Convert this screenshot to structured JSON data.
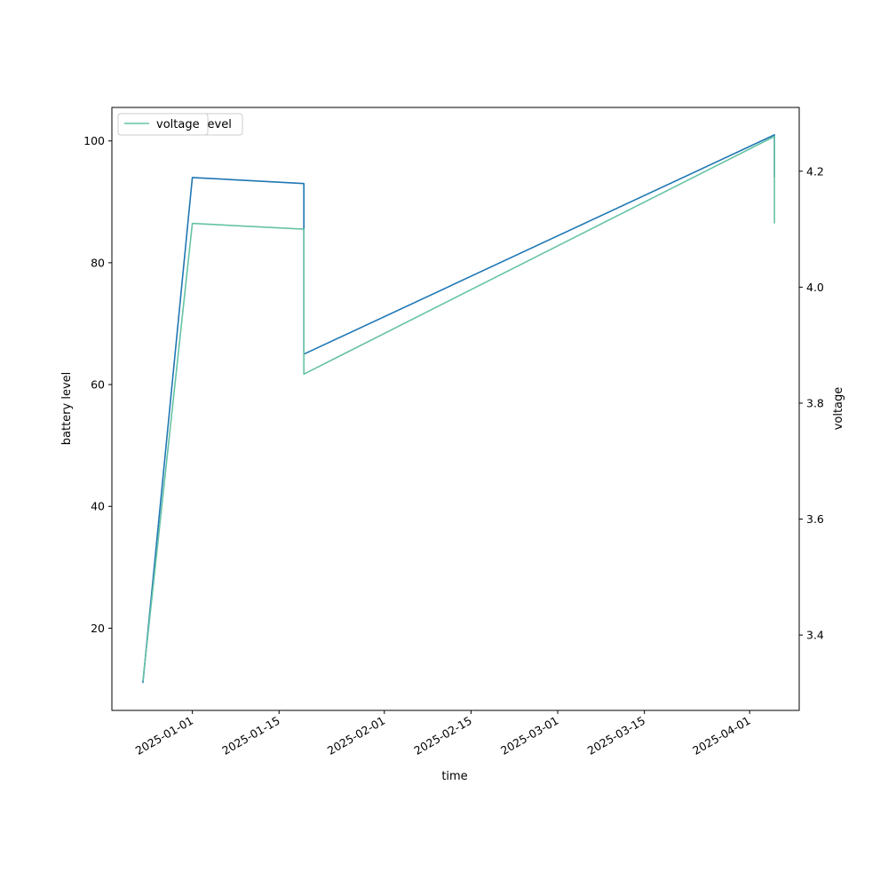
{
  "chart_data": {
    "type": "line",
    "xlabel": "time",
    "x_ticks": [
      "2025-01-01",
      "2025-01-15",
      "2025-02-01",
      "2025-02-15",
      "2025-03-01",
      "2025-03-15",
      "2025-04-01"
    ],
    "xlim": [
      "2024-12-19",
      "2025-04-09"
    ],
    "left_axis": {
      "label": "battery level",
      "ylim": [
        6.5,
        105.5
      ],
      "ticks": [
        20,
        40,
        60,
        80,
        100
      ]
    },
    "right_axis": {
      "label": "voltage",
      "ylim": [
        3.27,
        4.31
      ],
      "ticks": [
        3.4,
        3.6,
        3.8,
        4.0,
        4.2
      ]
    },
    "series": [
      {
        "name": "battery_level",
        "axis": "left",
        "color": "#1f77b4",
        "points": [
          {
            "x": "2024-12-24",
            "y": 11
          },
          {
            "x": "2025-01-01",
            "y": 94
          },
          {
            "x": "2025-01-19",
            "y": 93
          },
          {
            "x": "2025-01-19",
            "y": 65
          },
          {
            "x": "2025-04-05",
            "y": 101
          },
          {
            "x": "2025-04-05",
            "y": 94
          }
        ]
      },
      {
        "name": "voltage",
        "axis": "right",
        "color": "#66c2a5",
        "points": [
          {
            "x": "2024-12-24",
            "y": 3.32
          },
          {
            "x": "2025-01-01",
            "y": 4.11
          },
          {
            "x": "2025-01-19",
            "y": 4.1
          },
          {
            "x": "2025-01-19",
            "y": 3.85
          },
          {
            "x": "2025-04-05",
            "y": 4.26
          },
          {
            "x": "2025-04-05",
            "y": 4.11
          }
        ]
      }
    ],
    "legend": {
      "placement": "upper-left",
      "entries_back": [
        "battery_level"
      ],
      "entries_front": [
        "voltage"
      ]
    }
  }
}
